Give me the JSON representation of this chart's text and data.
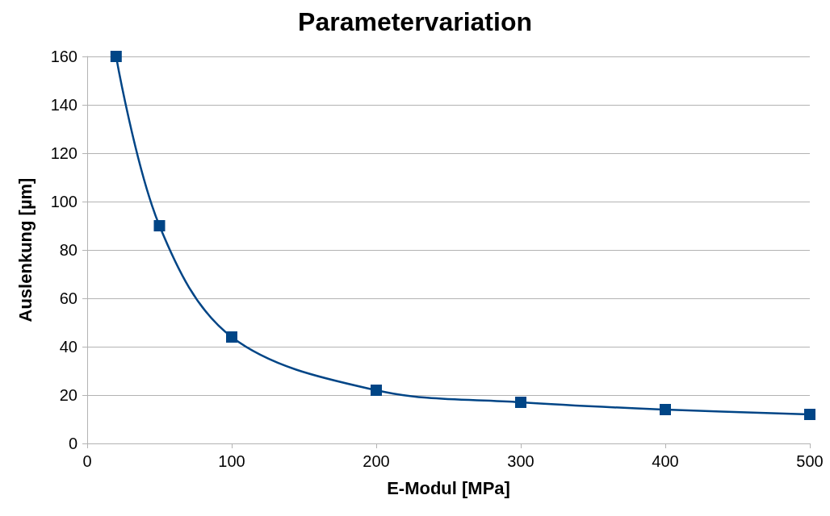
{
  "chart_data": {
    "type": "line",
    "title": "Parametervariation",
    "xlabel": "E-Modul [MPa]",
    "ylabel": "Auslenkung [µm]",
    "x": [
      20,
      50,
      100,
      200,
      300,
      400,
      500
    ],
    "series": [
      {
        "color": "#004586",
        "values": [
          160,
          90,
          44,
          22,
          17,
          14,
          12
        ]
      }
    ],
    "xlim": [
      0,
      500
    ],
    "xticks": [
      0,
      100,
      200,
      300,
      400,
      500
    ],
    "ylim": [
      0,
      160
    ],
    "yticks": [
      0,
      20,
      40,
      60,
      80,
      100,
      120,
      140,
      160
    ],
    "grid": "y",
    "marker": "square",
    "line_style": "solid"
  }
}
